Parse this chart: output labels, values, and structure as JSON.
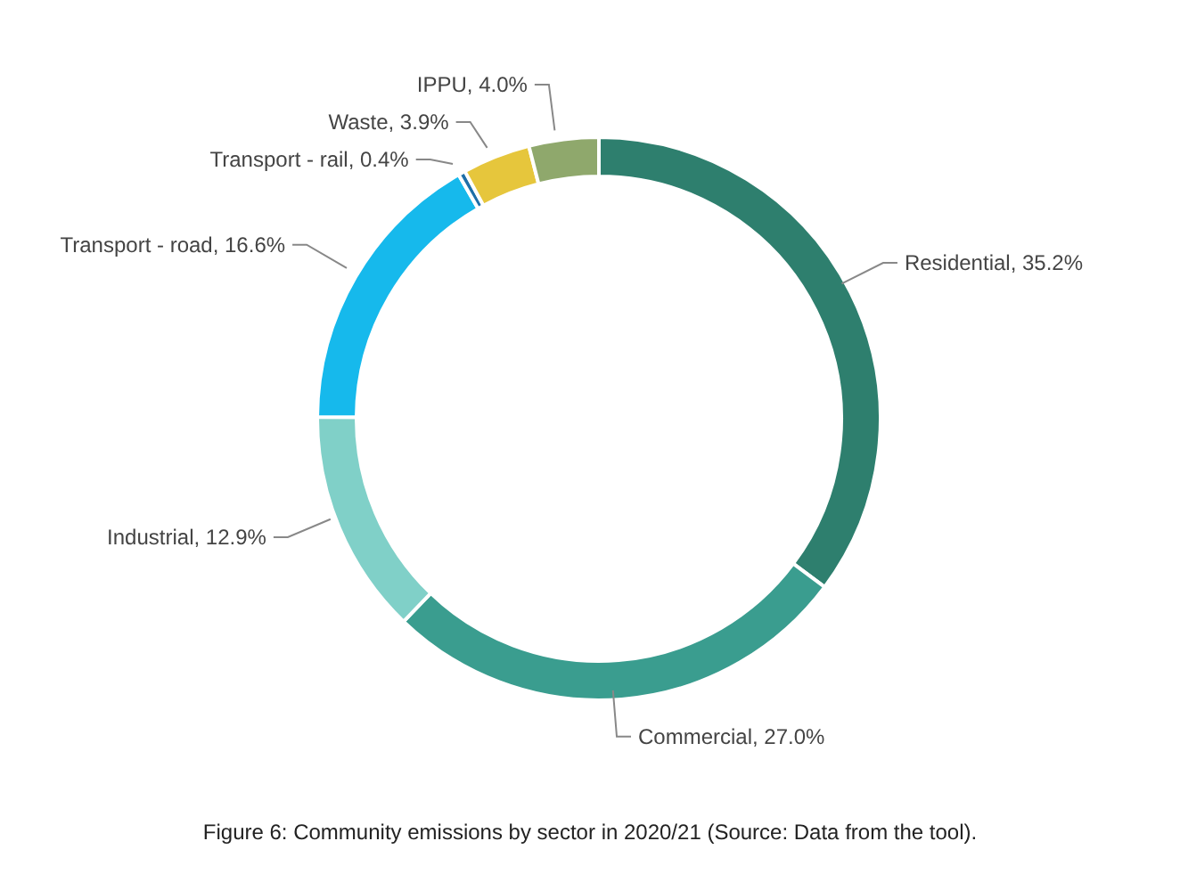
{
  "chart_data": {
    "type": "donut",
    "categories": [
      "Residential",
      "Commercial",
      "Industrial",
      "Transport - road",
      "Transport - rail",
      "Waste",
      "IPPU"
    ],
    "values": [
      35.2,
      27.0,
      12.9,
      16.6,
      0.4,
      3.9,
      4.0
    ],
    "value_labels": [
      "35.2%",
      "27.0%",
      "12.9%",
      "16.6%",
      "0.4%",
      "3.9%",
      "4.0%"
    ],
    "colors": [
      "#2e7f6e",
      "#3a9d8f",
      "#80d0c8",
      "#16b9ec",
      "#1e6fa8",
      "#e6c63c",
      "#8fa86c"
    ],
    "legend": false,
    "annotations": [
      "Figure 6: Community emissions by sector in 2020/21 (Source: Data from the tool)."
    ]
  }
}
